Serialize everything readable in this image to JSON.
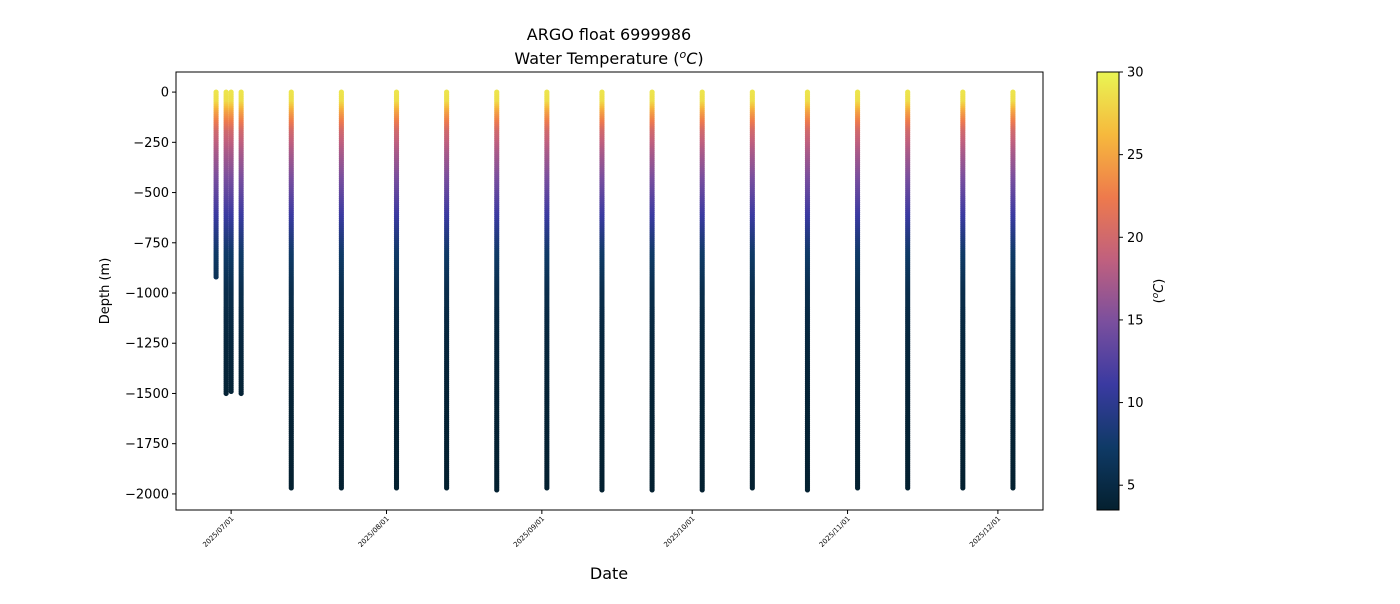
{
  "chart_data": {
    "type": "scatter",
    "title": "ARGO float 6999986",
    "subtitle": "Water Temperature (",
    "subtitle_unit_sup": "o",
    "subtitle_unit": "C",
    "subtitle_close": ")",
    "xlabel": "Date",
    "ylabel": "Depth (m)",
    "colorbar_label_open": "(",
    "colorbar_label_sup": "o",
    "colorbar_label_unit": "C",
    "colorbar_label_close": ")",
    "colormap": "thermal",
    "colormap_stops": [
      "#04202f",
      "#0f3a66",
      "#3a3aa1",
      "#7a4f9e",
      "#c0607e",
      "#ee7a4c",
      "#f6b93d",
      "#e9f553"
    ],
    "clim": [
      3.5,
      30
    ],
    "colorbar_ticks": [
      5,
      10,
      15,
      20,
      25,
      30
    ],
    "colorbar_tick_labels": [
      "5",
      "10",
      "15",
      "20",
      "25",
      "30"
    ],
    "xlim": [
      "2025-06-20",
      "2025-12-10"
    ],
    "ylim": [
      -2080,
      100
    ],
    "x_ticks": [
      "2025-07-01",
      "2025-08-01",
      "2025-09-01",
      "2025-10-01",
      "2025-11-01",
      "2025-12-01"
    ],
    "x_tick_labels": [
      "2025/07/01",
      "2025/08/01",
      "2025/09/01",
      "2025/10/01",
      "2025/11/01",
      "2025/12/01"
    ],
    "y_ticks": [
      0,
      -250,
      -500,
      -750,
      -1000,
      -1250,
      -1500,
      -1750,
      -2000
    ],
    "y_tick_labels": [
      "0",
      "−250",
      "−500",
      "−750",
      "−1000",
      "−1250",
      "−1500",
      "−1750",
      "−2000"
    ],
    "grid": false,
    "profiles": [
      {
        "date": "2025-06-28",
        "max_depth": -920
      },
      {
        "date": "2025-06-30",
        "max_depth": -1500
      },
      {
        "date": "2025-07-01",
        "max_depth": -1490
      },
      {
        "date": "2025-07-03",
        "max_depth": -1500
      },
      {
        "date": "2025-07-13",
        "max_depth": -1975
      },
      {
        "date": "2025-07-23",
        "max_depth": -1975
      },
      {
        "date": "2025-08-03",
        "max_depth": -1975
      },
      {
        "date": "2025-08-13",
        "max_depth": -1975
      },
      {
        "date": "2025-08-23",
        "max_depth": -1980
      },
      {
        "date": "2025-09-02",
        "max_depth": -1975
      },
      {
        "date": "2025-09-13",
        "max_depth": -1980
      },
      {
        "date": "2025-09-23",
        "max_depth": -1980
      },
      {
        "date": "2025-10-03",
        "max_depth": -1980
      },
      {
        "date": "2025-10-13",
        "max_depth": -1975
      },
      {
        "date": "2025-10-24",
        "max_depth": -1980
      },
      {
        "date": "2025-11-03",
        "max_depth": -1975
      },
      {
        "date": "2025-11-13",
        "max_depth": -1975
      },
      {
        "date": "2025-11-24",
        "max_depth": -1975
      },
      {
        "date": "2025-12-04",
        "max_depth": -1975
      }
    ],
    "temperature_profile": {
      "depths": [
        0,
        -50,
        -100,
        -200,
        -300,
        -400,
        -500,
        -600,
        -700,
        -800,
        -1000,
        -1200,
        -1500,
        -2000
      ],
      "temps": [
        29,
        28.5,
        25,
        20,
        17.5,
        15.5,
        13.5,
        11.5,
        9.5,
        7.5,
        5.5,
        4.6,
        4.0,
        3.6
      ]
    }
  }
}
